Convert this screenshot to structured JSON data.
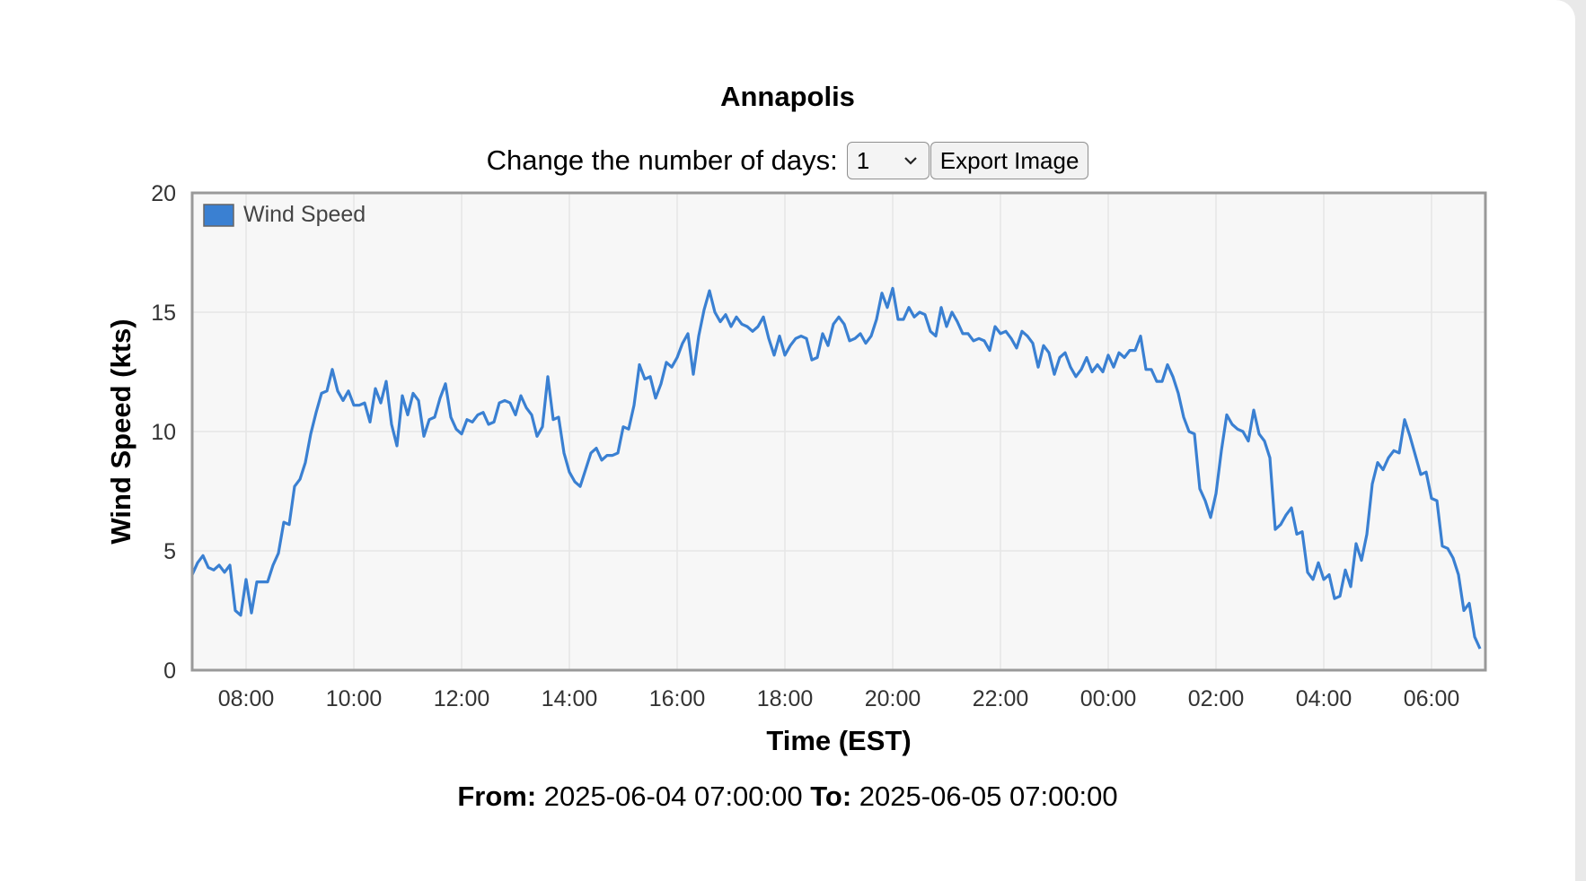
{
  "header": {
    "title": "Annapolis"
  },
  "controls": {
    "days_label": "Change the number of days:",
    "days_value": "1",
    "export_label": "Export Image"
  },
  "footer": {
    "from_label": "From:",
    "from_value": "2025-06-04 07:00:00",
    "to_label": "To:",
    "to_value": "2025-06-05 07:00:00"
  },
  "chart_data": {
    "type": "line",
    "xlabel": "Time (EST)",
    "ylabel": "Wind Speed (kts)",
    "ylim": [
      0,
      20
    ],
    "yticks": [
      0,
      5,
      10,
      15,
      20
    ],
    "xlim_hours": [
      7,
      31
    ],
    "xticks": [
      {
        "h": 8,
        "label": "08:00"
      },
      {
        "h": 10,
        "label": "10:00"
      },
      {
        "h": 12,
        "label": "12:00"
      },
      {
        "h": 14,
        "label": "14:00"
      },
      {
        "h": 16,
        "label": "16:00"
      },
      {
        "h": 18,
        "label": "18:00"
      },
      {
        "h": 20,
        "label": "20:00"
      },
      {
        "h": 22,
        "label": "22:00"
      },
      {
        "h": 24,
        "label": "00:00"
      },
      {
        "h": 26,
        "label": "02:00"
      },
      {
        "h": 28,
        "label": "04:00"
      },
      {
        "h": 30,
        "label": "06:00"
      }
    ],
    "grid": true,
    "legend_position": "top-left",
    "colors": {
      "line": "#3a80d2",
      "plot_bg": "#f7f7f7",
      "grid": "#e6e6e6",
      "frame": "#999999"
    },
    "series": [
      {
        "name": "Wind Speed",
        "x_start_hour": 7,
        "x_step_minutes": 6,
        "values": [
          4.0,
          4.5,
          4.8,
          4.3,
          4.2,
          4.4,
          4.1,
          4.4,
          2.5,
          2.3,
          3.8,
          2.4,
          3.7,
          3.7,
          3.7,
          4.4,
          4.9,
          6.2,
          6.1,
          7.7,
          8.0,
          8.7,
          9.9,
          10.8,
          11.6,
          11.7,
          12.6,
          11.7,
          11.3,
          11.7,
          11.1,
          11.1,
          11.2,
          10.4,
          11.8,
          11.2,
          12.1,
          10.3,
          9.4,
          11.5,
          10.7,
          11.6,
          11.3,
          9.8,
          10.5,
          10.6,
          11.4,
          12.0,
          10.6,
          10.1,
          9.9,
          10.5,
          10.4,
          10.7,
          10.8,
          10.3,
          10.4,
          11.2,
          11.3,
          11.2,
          10.7,
          11.5,
          11.0,
          10.7,
          9.8,
          10.2,
          12.3,
          10.5,
          10.6,
          9.1,
          8.3,
          7.9,
          7.7,
          8.4,
          9.1,
          9.3,
          8.8,
          9.0,
          9.0,
          9.1,
          10.2,
          10.1,
          11.1,
          12.8,
          12.2,
          12.3,
          11.4,
          12.0,
          12.9,
          12.7,
          13.1,
          13.7,
          14.1,
          12.4,
          14.0,
          15.1,
          15.9,
          15.0,
          14.6,
          14.9,
          14.4,
          14.8,
          14.5,
          14.4,
          14.2,
          14.4,
          14.8,
          13.9,
          13.2,
          14.0,
          13.2,
          13.6,
          13.9,
          14.0,
          13.9,
          13.0,
          13.1,
          14.1,
          13.6,
          14.5,
          14.8,
          14.5,
          13.8,
          13.9,
          14.1,
          13.7,
          14.0,
          14.7,
          15.8,
          15.2,
          16.0,
          14.7,
          14.7,
          15.2,
          14.8,
          15.0,
          14.9,
          14.2,
          14.0,
          15.2,
          14.4,
          15.0,
          14.6,
          14.1,
          14.1,
          13.8,
          13.9,
          13.8,
          13.4,
          14.4,
          14.1,
          14.2,
          13.9,
          13.5,
          14.2,
          14.0,
          13.7,
          12.7,
          13.6,
          13.3,
          12.4,
          13.1,
          13.3,
          12.7,
          12.3,
          12.6,
          13.1,
          12.5,
          12.8,
          12.5,
          13.2,
          12.7,
          13.3,
          13.1,
          13.4,
          13.4,
          14.0,
          12.6,
          12.6,
          12.1,
          12.1,
          12.8,
          12.3,
          11.6,
          10.6,
          10.0,
          9.9,
          7.6,
          7.1,
          6.4,
          7.4,
          9.2,
          10.7,
          10.3,
          10.1,
          10.0,
          9.6,
          10.9,
          9.9,
          9.6,
          8.9,
          5.9,
          6.1,
          6.5,
          6.8,
          5.7,
          5.8,
          4.1,
          3.8,
          4.5,
          3.8,
          4.0,
          3.0,
          3.1,
          4.2,
          3.5,
          5.3,
          4.6,
          5.7,
          7.8,
          8.7,
          8.4,
          8.9,
          9.2,
          9.1,
          10.5,
          9.8,
          9.0,
          8.2,
          8.3,
          7.2,
          7.1,
          5.2,
          5.1,
          4.7,
          4.0,
          2.5,
          2.8,
          1.4,
          0.9
        ]
      }
    ]
  }
}
